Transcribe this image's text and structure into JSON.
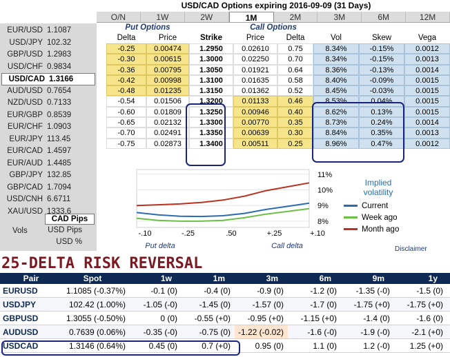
{
  "title": "USD/CAD Options expiring 2016-09-09 (31 Days)",
  "tabs": [
    "O/N",
    "1W",
    "2W",
    "1M",
    "2M",
    "3M",
    "6M",
    "12M"
  ],
  "active_tab": "1M",
  "pairs": [
    {
      "pair": "EUR/USD",
      "rate": "1.1087"
    },
    {
      "pair": "USD/JPY",
      "rate": "102.32"
    },
    {
      "pair": "GBP/USD",
      "rate": "1.2983"
    },
    {
      "pair": "USD/CHF",
      "rate": "0.9834"
    },
    {
      "pair": "USD/CAD",
      "rate": "1.3166"
    },
    {
      "pair": "AUD/USD",
      "rate": "0.7654"
    },
    {
      "pair": "NZD/USD",
      "rate": "0.7133"
    },
    {
      "pair": "EUR/GBP",
      "rate": "0.8539"
    },
    {
      "pair": "EUR/CHF",
      "rate": "1.0903"
    },
    {
      "pair": "EUR/JPY",
      "rate": "113.45"
    },
    {
      "pair": "EUR/CAD",
      "rate": "1.4597"
    },
    {
      "pair": "EUR/AUD",
      "rate": "1.4485"
    },
    {
      "pair": "GBP/JPY",
      "rate": "132.85"
    },
    {
      "pair": "GBP/CAD",
      "rate": "1.7094"
    },
    {
      "pair": "USD/CNH",
      "rate": "6.6711"
    },
    {
      "pair": "XAU/USD",
      "rate": "1333.6"
    }
  ],
  "mode": {
    "title": "CAD Pips",
    "options": [
      "USD Pips",
      "USD %"
    ],
    "vols_label": "Vols"
  },
  "options": {
    "put_group": "Put Options",
    "call_group": "Call Options",
    "headers": [
      "Delta",
      "Price",
      "Strike",
      "Price",
      "Delta",
      "Vol",
      "Skew",
      "Vega"
    ],
    "rows": [
      [
        "-0.25",
        "0.00474",
        "1.2950",
        "0.02610",
        "0.75",
        "8.34%",
        "-0.15%",
        "0.0012"
      ],
      [
        "-0.30",
        "0.00615",
        "1.3000",
        "0.02250",
        "0.70",
        "8.34%",
        "-0.15%",
        "0.0013"
      ],
      [
        "-0.36",
        "0.00795",
        "1.3050",
        "0.01921",
        "0.64",
        "8.36%",
        "-0.13%",
        "0.0014"
      ],
      [
        "-0.42",
        "0.00998",
        "1.3100",
        "0.01635",
        "0.58",
        "8.40%",
        "-0.09%",
        "0.0015"
      ],
      [
        "-0.48",
        "0.01235",
        "1.3150",
        "0.01362",
        "0.52",
        "8.45%",
        "-0.03%",
        "0.0015"
      ],
      [
        "-0.54",
        "0.01506",
        "1.3200",
        "0.01133",
        "0.46",
        "8.53%",
        "0.04%",
        "0.0015"
      ],
      [
        "-0.60",
        "0.01809",
        "1.3250",
        "0.00946",
        "0.40",
        "8.62%",
        "0.13%",
        "0.0015"
      ],
      [
        "-0.65",
        "0.02132",
        "1.3300",
        "0.00770",
        "0.35",
        "8.73%",
        "0.24%",
        "0.0014"
      ],
      [
        "-0.70",
        "0.02491",
        "1.3350",
        "0.00639",
        "0.30",
        "8.84%",
        "0.35%",
        "0.0013"
      ],
      [
        "-0.75",
        "0.02873",
        "1.3400",
        "0.00511",
        "0.25",
        "8.96%",
        "0.47%",
        "0.0012"
      ]
    ]
  },
  "chart_data": {
    "type": "line",
    "x": [
      -0.1,
      -0.175,
      -0.25,
      -0.375,
      0.5,
      0.375,
      0.25,
      0.175,
      0.1
    ],
    "x_tick_labels": [
      "-.10",
      "-.25",
      ".50",
      "+.25",
      "+.10"
    ],
    "xlabel_left": "Put delta",
    "xlabel_right": "Call delta",
    "y_tick_labels": [
      "11%",
      "10%",
      "9%",
      "8%"
    ],
    "ylim": [
      7.6,
      11.3
    ],
    "legend_title": "Implied volatility",
    "series": [
      {
        "name": "Current",
        "color": "#2a6bb0",
        "values": [
          8.55,
          8.4,
          8.32,
          8.3,
          8.35,
          8.5,
          8.75,
          8.95,
          9.15
        ]
      },
      {
        "name": "Week ago",
        "color": "#6cbf45",
        "values": [
          8.18,
          8.05,
          8.0,
          8.0,
          8.05,
          8.22,
          8.45,
          8.62,
          8.8
        ]
      },
      {
        "name": "Month ago",
        "color": "#b8321f",
        "values": [
          9.0,
          9.05,
          9.1,
          9.2,
          9.35,
          9.6,
          9.95,
          10.2,
          10.45
        ]
      }
    ]
  },
  "disclaimer": "Disclaimer",
  "risk_reversal": {
    "title": "25-DELTA RISK REVERSAL",
    "headers": [
      "Pair",
      "Spot",
      "1w",
      "1m",
      "3m",
      "6m",
      "9m",
      "1y"
    ],
    "rows": [
      [
        "EURUSD",
        "1.1085 (-0.37%)",
        "-0.1 (0)",
        "-0.4 (0)",
        "-0.9 (0)",
        "-1.2 (0)",
        "-1.35 (-0)",
        "-1.5 (0)"
      ],
      [
        "USDJPY",
        "102.42 (1.00%)",
        "-1.05 (-0)",
        "-1.45 (0)",
        "-1.57 (0)",
        "-1.7 (0)",
        "-1.75 (+0)",
        "-1.75 (+0)"
      ],
      [
        "GBPUSD",
        "1.3055 (-0.50%)",
        "0 (0)",
        "-0.55 (+0)",
        "-0.95 (+0)",
        "-1.15 (+0)",
        "-1.4 (0)",
        "-1.6 (0)"
      ],
      [
        "AUDUSD",
        "0.7639 (0.06%)",
        "-0.35 (-0)",
        "-0.75 (0)",
        "-1.22 (-0.02)",
        "-1.6 (-0)",
        "-1.9 (-0)",
        "-2.1 (+0)"
      ],
      [
        "USDCAD",
        "1.3146 (0.64%)",
        "0.45 (0)",
        "0.7 (+0)",
        "0.95 (0)",
        "1.1 (0)",
        "1.2 (-0)",
        "1.25 (+0)"
      ]
    ],
    "highlight_color": "#fde5cf"
  }
}
